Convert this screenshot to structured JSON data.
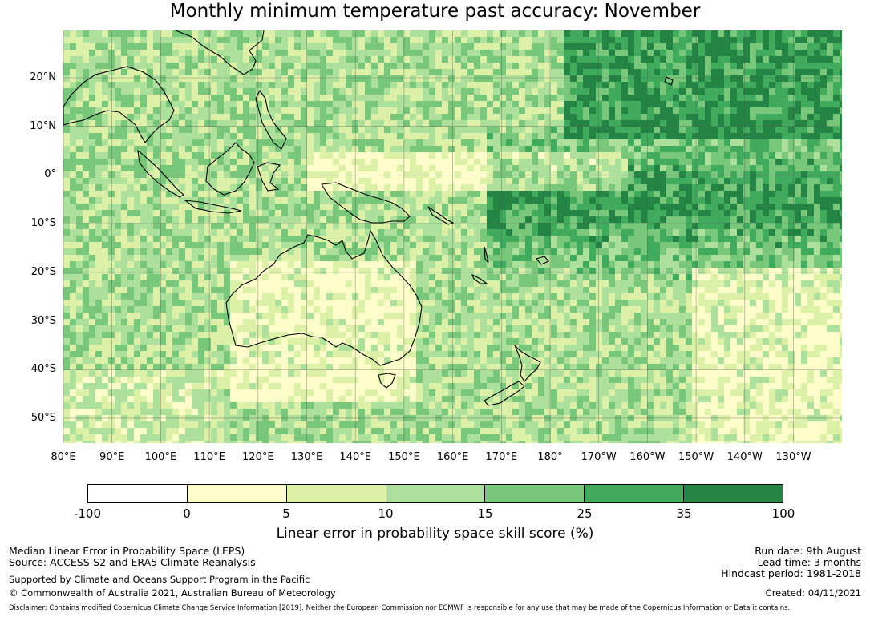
{
  "title": "Monthly minimum temperature past accuracy: November",
  "map": {
    "lat_labels": [
      "20°N",
      "10°N",
      "0°",
      "10°S",
      "20°S",
      "30°S",
      "40°S",
      "50°S"
    ],
    "lon_labels": [
      "80°E",
      "90°E",
      "100°E",
      "110°E",
      "120°E",
      "130°E",
      "140°E",
      "150°E",
      "160°E",
      "170°E",
      "180°",
      "170°W",
      "160°W",
      "150°W",
      "140°W",
      "130°W"
    ],
    "colors": {
      "land_outline": "#000000",
      "grid": "#555555"
    }
  },
  "colorbar": {
    "ticks": [
      "-100",
      "0",
      "5",
      "10",
      "15",
      "25",
      "35",
      "100"
    ],
    "colors": [
      "#ffffff",
      "#fefecb",
      "#dcf0a8",
      "#ade09a",
      "#79c77b",
      "#41ab5d",
      "#238443"
    ],
    "label": "Linear error in probability space skill score (%)"
  },
  "footer": {
    "left_line1": "Median Linear Error in Probability Space (LEPS)",
    "left_line2": "Source: ACCESS-S2 and ERA5 Climate Reanalysis",
    "left_line3": "Supported by Climate and Oceans Support Program in the Pacific",
    "left_line4": "© Commonwealth of Australia 2021, Australian Bureau of Meteorology",
    "right_line1": "Run date: 9th August",
    "right_line2": "Lead time: 3 months",
    "right_line3": "Hindcast period: 1981-2018",
    "right_line4": "Created: 04/11/2021",
    "disclaimer": "Disclaimer: Contains modified Copernicus Climate Change Service Information [2019]. Neither the European Commission nor ECMWF is responsible for any use that may be made of the Copernicus Information or Data it contains."
  }
}
